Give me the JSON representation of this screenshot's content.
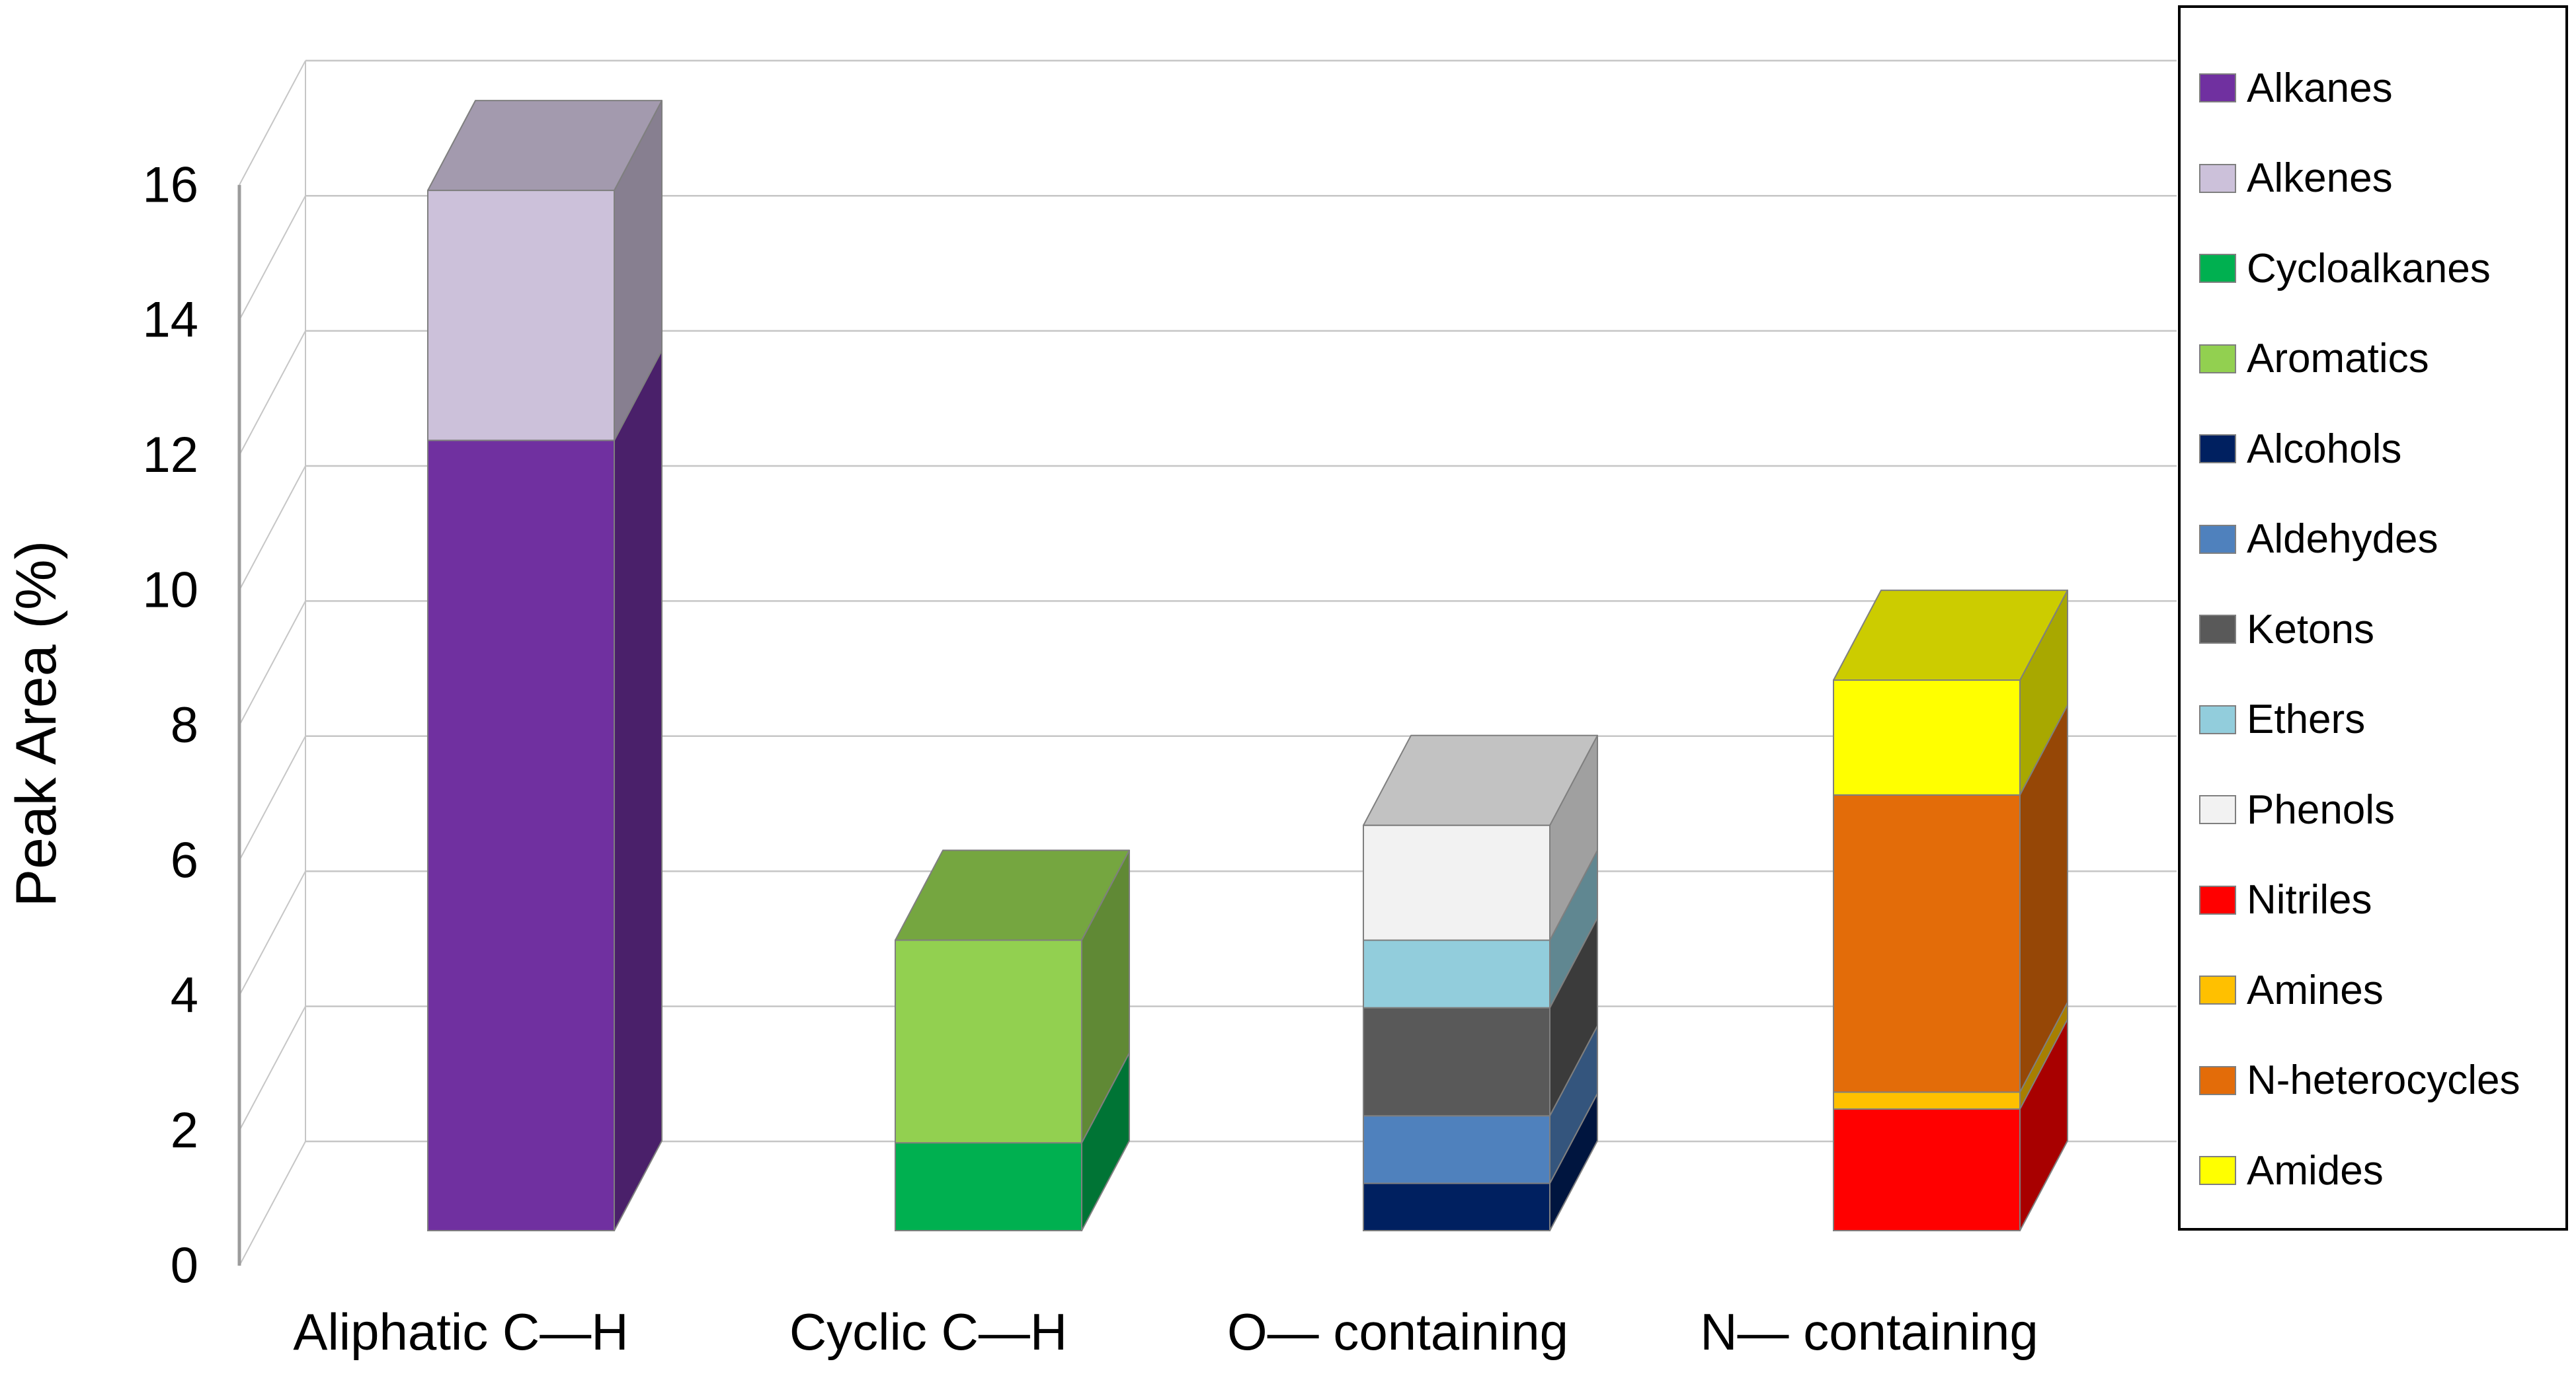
{
  "chart_data": {
    "type": "bar",
    "variant": "3d-stacked-column",
    "title": "",
    "xlabel": "",
    "ylabel": "Peak Area (%)",
    "ylim": [
      0,
      16
    ],
    "yticks": [
      0,
      2,
      4,
      6,
      8,
      10,
      12,
      14,
      16
    ],
    "grid": true,
    "legend_position": "right",
    "categories": [
      "Aliphatic C—H",
      "Cyclic C—H",
      "O— containing",
      "N— containing"
    ],
    "series": [
      {
        "name": "Alkanes",
        "color": "#7030A0",
        "values": [
          11.7,
          0,
          0,
          0
        ]
      },
      {
        "name": "Alkenes",
        "color": "#CCC1DA",
        "values": [
          3.7,
          0,
          0,
          0
        ]
      },
      {
        "name": "Cycloalkanes",
        "color": "#00B050",
        "values": [
          0,
          1.3,
          0,
          0
        ]
      },
      {
        "name": "Aromatics",
        "color": "#92D050",
        "values": [
          0,
          3.0,
          0,
          0
        ]
      },
      {
        "name": "Alcohols",
        "color": "#002060",
        "values": [
          0,
          0,
          0.7,
          0
        ]
      },
      {
        "name": "Aldehydes",
        "color": "#4F81BD",
        "values": [
          0,
          0,
          1.0,
          0
        ]
      },
      {
        "name": "Ketons",
        "color": "#595959",
        "values": [
          0,
          0,
          1.6,
          0
        ]
      },
      {
        "name": "Ethers",
        "color": "#92CDDC",
        "values": [
          0,
          0,
          1.0,
          0
        ]
      },
      {
        "name": "Phenols",
        "color": "#F2F2F2",
        "values": [
          0,
          0,
          1.7,
          0
        ]
      },
      {
        "name": "Nitriles",
        "color": "#FF0000",
        "values": [
          0,
          0,
          0,
          1.8
        ]
      },
      {
        "name": "Amines",
        "color": "#FFC000",
        "values": [
          0,
          0,
          0,
          0.25
        ]
      },
      {
        "name": "N-heterocycles",
        "color": "#E36C09",
        "values": [
          0,
          0,
          0,
          4.4
        ]
      },
      {
        "name": "Amides",
        "color": "#FFFF00",
        "values": [
          0,
          0,
          0,
          1.7
        ]
      }
    ],
    "styles": {
      "grid_color": "#C6C6C6",
      "axis_color": "#9C9C9C",
      "text_color": "#000000",
      "legend_border_color": "#000000",
      "segment_edge_color": "#7F7F7F"
    }
  }
}
